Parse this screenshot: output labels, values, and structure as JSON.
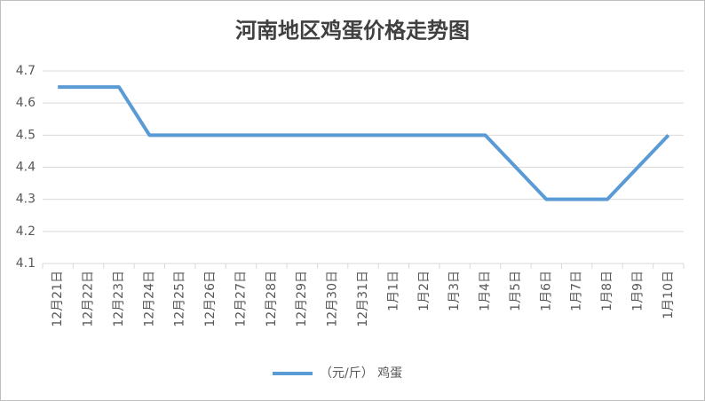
{
  "chart_data": {
    "type": "line",
    "title": "河南地区鸡蛋价格走势图",
    "categories": [
      "12月21日",
      "12月22日",
      "12月23日",
      "12月24日",
      "12月25日",
      "12月26日",
      "12月27日",
      "12月28日",
      "12月29日",
      "12月30日",
      "12月31日",
      "1月1日",
      "1月2日",
      "1月3日",
      "1月4日",
      "1月5日",
      "1月6日",
      "1月7日",
      "1月8日",
      "1月9日",
      "1月10日"
    ],
    "series": [
      {
        "name": "（元/斤） 鸡蛋",
        "color": "#5b9bd5",
        "values": [
          4.65,
          4.65,
          4.65,
          4.5,
          4.5,
          4.5,
          4.5,
          4.5,
          4.5,
          4.5,
          4.5,
          4.5,
          4.5,
          4.5,
          4.5,
          4.4,
          4.3,
          4.3,
          4.3,
          4.4,
          4.5
        ]
      }
    ],
    "ylim": [
      4.1,
      4.7
    ],
    "yticks": [
      4.1,
      4.2,
      4.3,
      4.4,
      4.5,
      4.6,
      4.7
    ],
    "grid": true,
    "legend": "bottom"
  }
}
